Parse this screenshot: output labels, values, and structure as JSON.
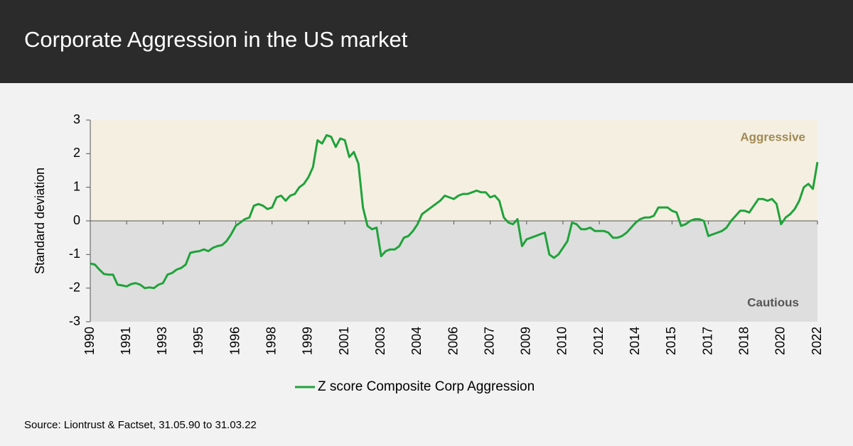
{
  "chart_data": {
    "type": "line",
    "title": "Corporate Aggression  in the US market",
    "y_label": "Standard deviation",
    "source": "Source: Liontrust & Factset, 31.05.90 to 31.03.22",
    "annotations": {
      "aggressive": "Aggressive",
      "cautious": "Cautious"
    },
    "categories": [
      "1990",
      null,
      null,
      null,
      null,
      null,
      null,
      null,
      "1991",
      null,
      null,
      null,
      null,
      null,
      null,
      null,
      "1993",
      null,
      null,
      null,
      null,
      null,
      null,
      null,
      "1995",
      null,
      null,
      null,
      null,
      null,
      null,
      null,
      "1996",
      null,
      null,
      null,
      null,
      null,
      null,
      null,
      "1998",
      null,
      null,
      null,
      null,
      null,
      null,
      null,
      "1999",
      null,
      null,
      null,
      null,
      null,
      null,
      null,
      "2001",
      null,
      null,
      null,
      null,
      null,
      null,
      null,
      "2003",
      null,
      null,
      null,
      null,
      null,
      null,
      null,
      "2004",
      null,
      null,
      null,
      null,
      null,
      null,
      null,
      "2006",
      null,
      null,
      null,
      null,
      null,
      null,
      null,
      "2007",
      null,
      null,
      null,
      null,
      null,
      null,
      null,
      "2009",
      null,
      null,
      null,
      null,
      null,
      null,
      null,
      "2010",
      null,
      null,
      null,
      null,
      null,
      null,
      null,
      "2012",
      null,
      null,
      null,
      null,
      null,
      null,
      null,
      "2014",
      null,
      null,
      null,
      null,
      null,
      null,
      null,
      "2015",
      null,
      null,
      null,
      null,
      null,
      null,
      null,
      "2017",
      null,
      null,
      null,
      null,
      null,
      null,
      null,
      "2018",
      null,
      null,
      null,
      null,
      null,
      null,
      null,
      "2020",
      null,
      null,
      null,
      null,
      null,
      null,
      null,
      "2022"
    ],
    "series": [
      {
        "name": "Z score Composite Corp Aggression",
        "color": "#1fa33a",
        "values": [
          -1.27,
          -1.3,
          -1.45,
          -1.58,
          -1.6,
          -1.6,
          -1.9,
          -1.92,
          -1.95,
          -1.88,
          -1.85,
          -1.9,
          -2.0,
          -1.98,
          -2.0,
          -1.9,
          -1.85,
          -1.6,
          -1.55,
          -1.45,
          -1.4,
          -1.3,
          -0.95,
          -0.92,
          -0.9,
          -0.85,
          -0.9,
          -0.8,
          -0.75,
          -0.72,
          -0.6,
          -0.4,
          -0.15,
          -0.05,
          0.05,
          0.1,
          0.45,
          0.5,
          0.45,
          0.35,
          0.4,
          0.7,
          0.75,
          0.6,
          0.75,
          0.8,
          1.0,
          1.1,
          1.3,
          1.6,
          2.4,
          2.3,
          2.55,
          2.5,
          2.2,
          2.45,
          2.4,
          1.9,
          2.05,
          1.7,
          0.4,
          -0.15,
          -0.25,
          -0.2,
          -1.05,
          -0.9,
          -0.85,
          -0.85,
          -0.75,
          -0.5,
          -0.45,
          -0.3,
          -0.1,
          0.2,
          0.3,
          0.4,
          0.5,
          0.6,
          0.75,
          0.7,
          0.65,
          0.75,
          0.8,
          0.8,
          0.85,
          0.9,
          0.85,
          0.85,
          0.7,
          0.75,
          0.6,
          0.1,
          -0.05,
          -0.1,
          0.05,
          -0.75,
          -0.55,
          -0.5,
          -0.45,
          -0.4,
          -0.35,
          -1.0,
          -1.1,
          -1.0,
          -0.8,
          -0.6,
          -0.05,
          -0.1,
          -0.25,
          -0.25,
          -0.2,
          -0.3,
          -0.3,
          -0.3,
          -0.35,
          -0.5,
          -0.5,
          -0.45,
          -0.35,
          -0.2,
          -0.05,
          0.05,
          0.1,
          0.1,
          0.15,
          0.4,
          0.4,
          0.4,
          0.3,
          0.25,
          -0.15,
          -0.1,
          0.0,
          0.05,
          0.05,
          0.0,
          -0.45,
          -0.4,
          -0.35,
          -0.3,
          -0.2,
          0.0,
          0.15,
          0.3,
          0.3,
          0.25,
          0.45,
          0.65,
          0.65,
          0.6,
          0.65,
          0.5,
          -0.1,
          0.1,
          0.2,
          0.35,
          0.6,
          1.0,
          1.1,
          0.95,
          1.75
        ]
      }
    ],
    "ylim": [
      -3,
      3
    ],
    "yticks": [
      -3,
      -2,
      -1,
      0,
      1,
      2,
      3
    ],
    "band_colors": {
      "aggressive": "#f5efe2",
      "cautious": "#dedede"
    }
  }
}
